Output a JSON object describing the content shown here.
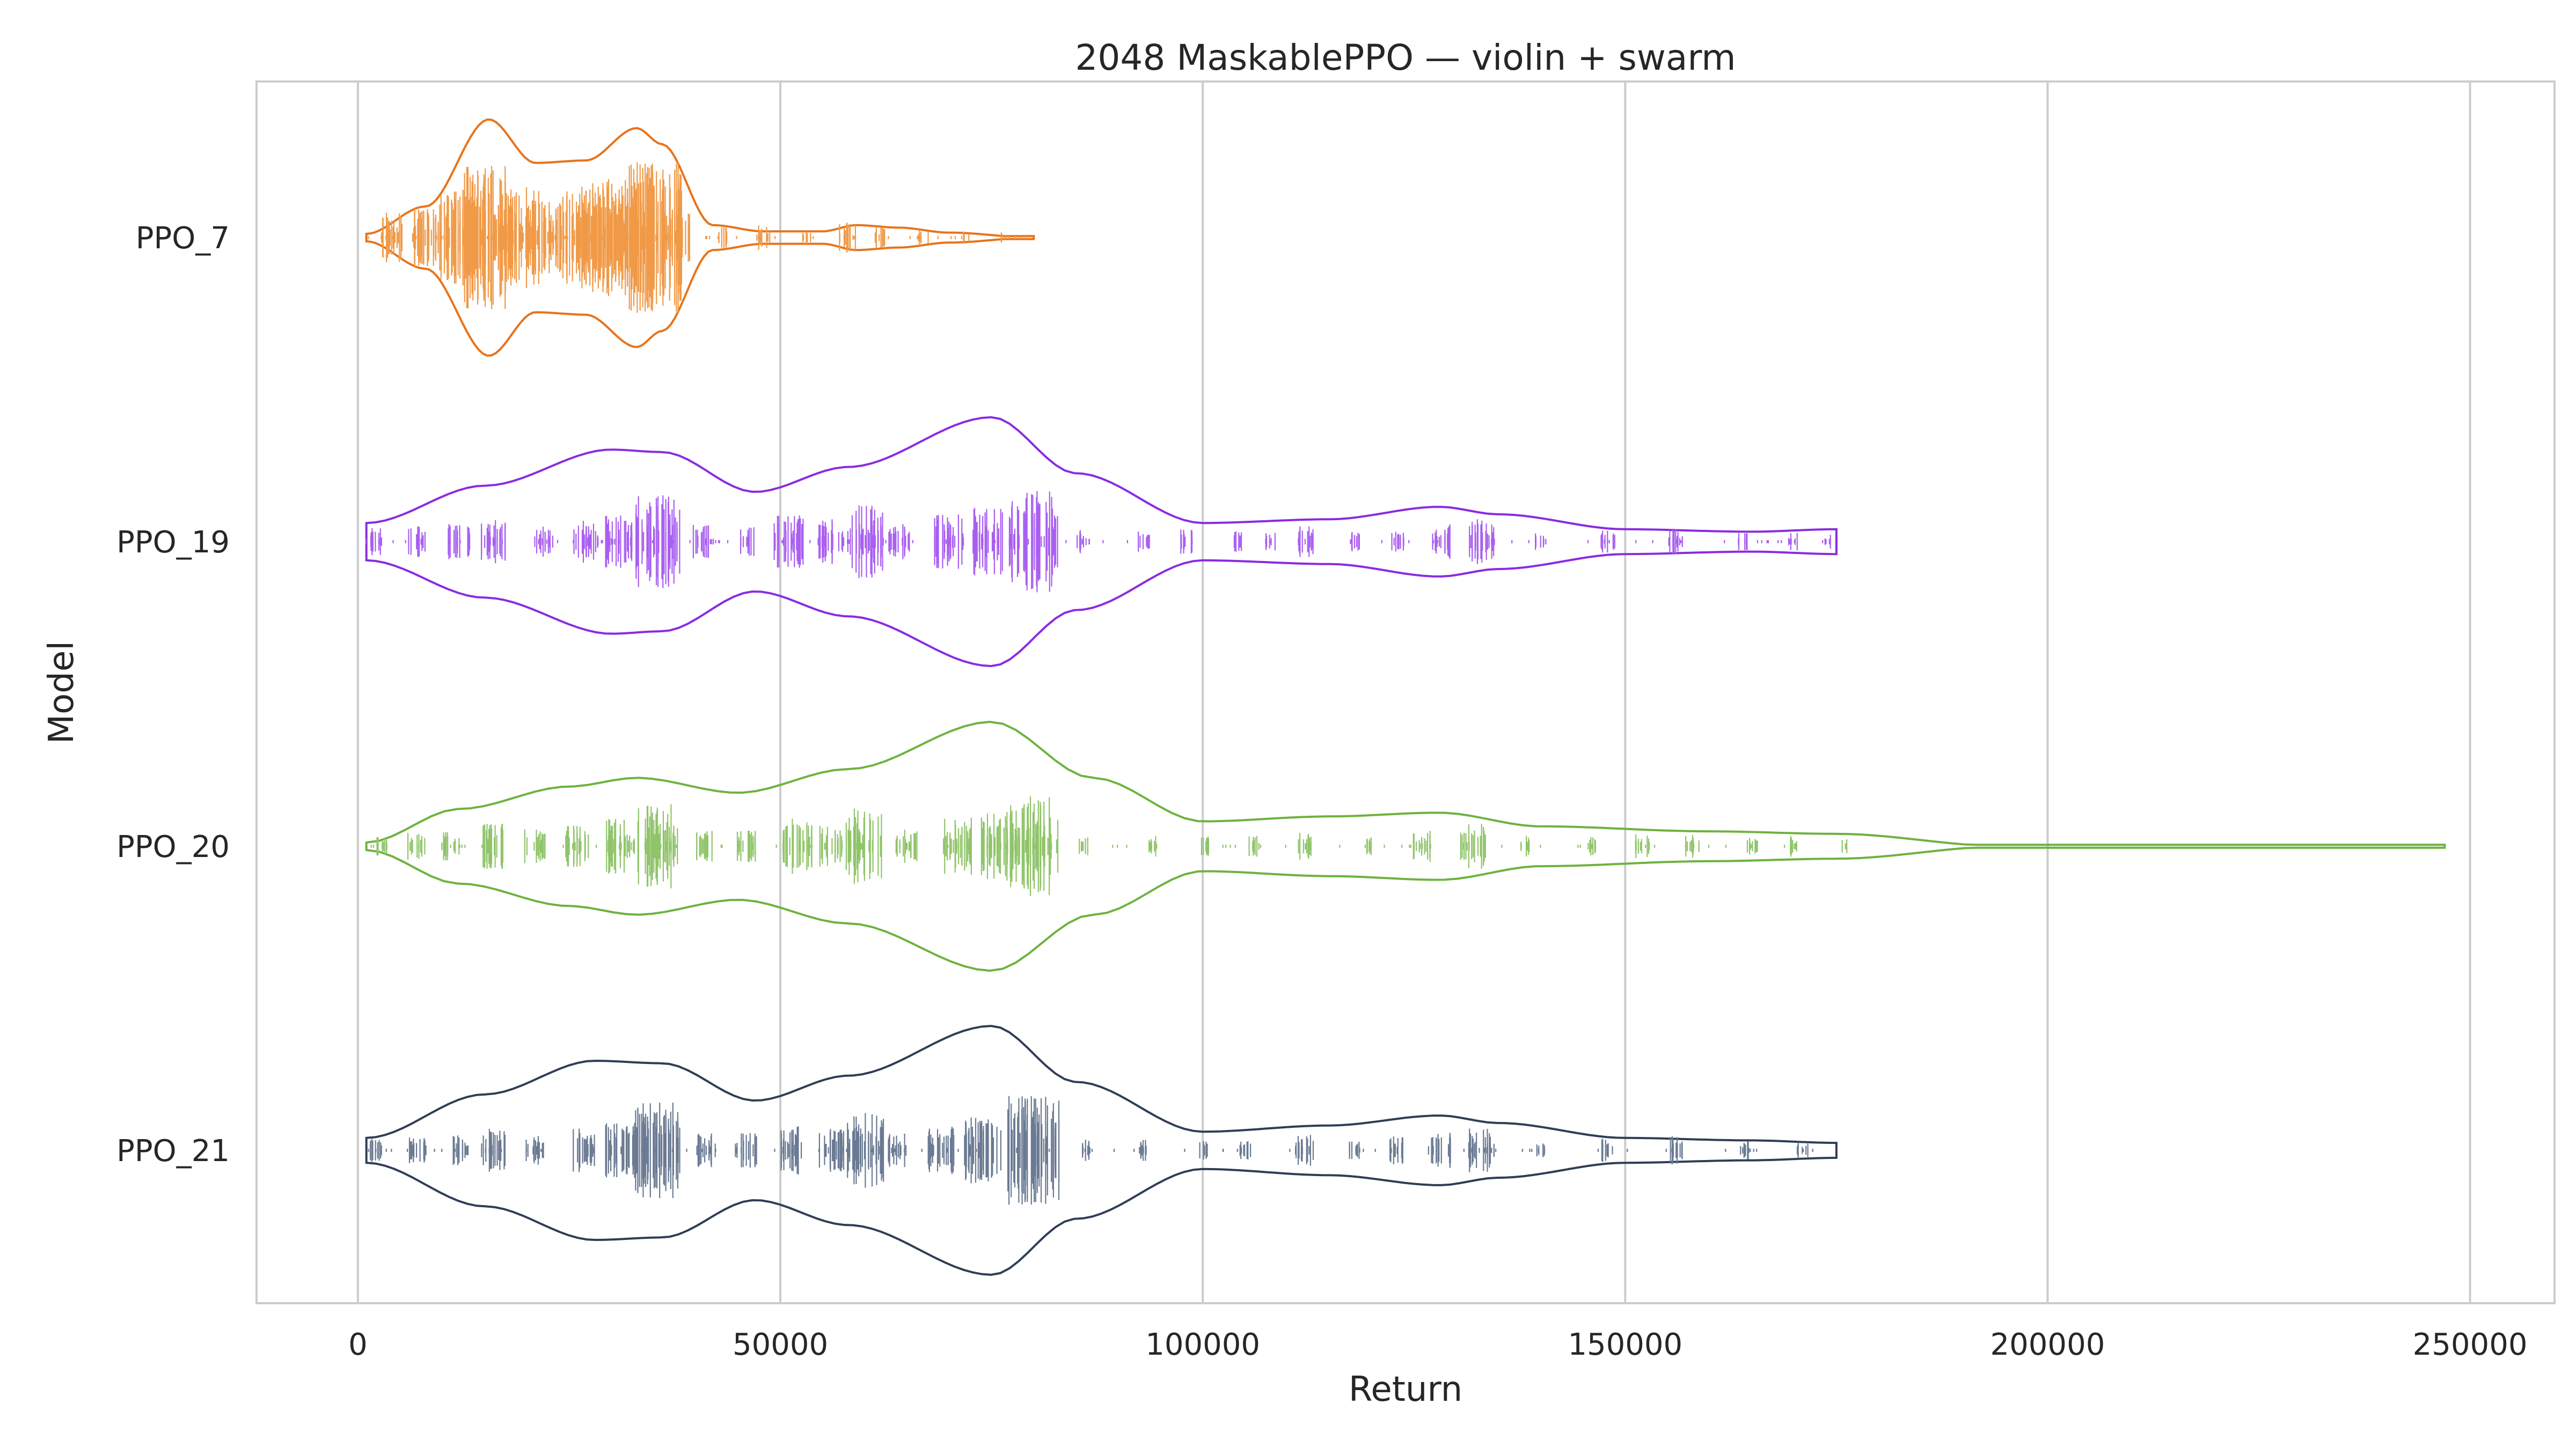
{
  "chart_data": {
    "type": "violin",
    "title": "2048 MaskablePPO — violin + swarm",
    "xlabel": "Return",
    "ylabel": "Model",
    "xlim": [
      -12000,
      260000
    ],
    "xticks": [
      0,
      50000,
      100000,
      150000,
      200000,
      250000
    ],
    "xtick_labels": [
      "0",
      "50000",
      "100000",
      "150000",
      "200000",
      "250000"
    ],
    "grid": "vertical",
    "series": [
      {
        "name": "PPO_7",
        "color": "#e8731a",
        "swarm_color": "#f09a48",
        "min": 1000,
        "max": 80000,
        "density": [
          [
            1000,
            0.03
          ],
          [
            8000,
            0.25
          ],
          [
            15500,
            0.95
          ],
          [
            21000,
            0.6
          ],
          [
            27000,
            0.62
          ],
          [
            33000,
            0.88
          ],
          [
            36000,
            0.75
          ],
          [
            42000,
            0.1
          ],
          [
            48000,
            0.05
          ],
          [
            55000,
            0.05
          ],
          [
            59000,
            0.1
          ],
          [
            64000,
            0.08
          ],
          [
            70000,
            0.04
          ],
          [
            80000,
            0.0
          ]
        ],
        "clusters": [
          [
            4000,
            25,
            6
          ],
          [
            8000,
            30,
            7
          ],
          [
            12000,
            50,
            11
          ],
          [
            15500,
            80,
            14
          ],
          [
            19000,
            55,
            11
          ],
          [
            22000,
            40,
            9
          ],
          [
            26000,
            50,
            10
          ],
          [
            29000,
            60,
            13
          ],
          [
            32000,
            65,
            14
          ],
          [
            35000,
            85,
            16
          ],
          [
            38000,
            25,
            7
          ],
          [
            43000,
            8,
            3
          ],
          [
            48000,
            10,
            4
          ],
          [
            53000,
            6,
            3
          ],
          [
            58000,
            14,
            5
          ],
          [
            62000,
            8,
            4
          ],
          [
            67000,
            5,
            3
          ],
          [
            72000,
            4,
            2
          ],
          [
            76000,
            2,
            2
          ]
        ]
      },
      {
        "name": "PPO_19",
        "color": "#8a2be2",
        "swarm_color": "#a95ff0",
        "min": 1000,
        "max": 175000,
        "density": [
          [
            1000,
            0.15
          ],
          [
            15000,
            0.45
          ],
          [
            30000,
            0.74
          ],
          [
            36000,
            0.72
          ],
          [
            47000,
            0.4
          ],
          [
            58000,
            0.6
          ],
          [
            75000,
            1.0
          ],
          [
            85000,
            0.55
          ],
          [
            100000,
            0.15
          ],
          [
            115000,
            0.18
          ],
          [
            128000,
            0.28
          ],
          [
            135000,
            0.22
          ],
          [
            150000,
            0.1
          ],
          [
            165000,
            0.08
          ],
          [
            175000,
            0.1
          ]
        ],
        "clusters": [
          [
            2000,
            12,
            5
          ],
          [
            7000,
            14,
            5
          ],
          [
            12000,
            16,
            6
          ],
          [
            16000,
            22,
            7
          ],
          [
            22000,
            14,
            5
          ],
          [
            27000,
            20,
            7
          ],
          [
            31000,
            26,
            8
          ],
          [
            35500,
            50,
            12
          ],
          [
            41000,
            16,
            6
          ],
          [
            46000,
            14,
            5
          ],
          [
            51000,
            28,
            8
          ],
          [
            56000,
            22,
            7
          ],
          [
            60000,
            38,
            10
          ],
          [
            64000,
            18,
            6
          ],
          [
            70000,
            28,
            8
          ],
          [
            75000,
            35,
            10
          ],
          [
            80000,
            55,
            13
          ],
          [
            86000,
            10,
            4
          ],
          [
            93000,
            8,
            4
          ],
          [
            98000,
            10,
            4
          ],
          [
            104000,
            8,
            3
          ],
          [
            108000,
            6,
            3
          ],
          [
            112000,
            14,
            5
          ],
          [
            118000,
            8,
            3
          ],
          [
            123000,
            10,
            4
          ],
          [
            128000,
            16,
            6
          ],
          [
            133000,
            22,
            7
          ],
          [
            140000,
            6,
            3
          ],
          [
            148000,
            10,
            4
          ],
          [
            156000,
            12,
            4
          ],
          [
            164000,
            6,
            3
          ],
          [
            170000,
            6,
            3
          ],
          [
            174000,
            4,
            2
          ]
        ]
      },
      {
        "name": "PPO_20",
        "color": "#6db33f",
        "swarm_color": "#90c46a",
        "min": 1000,
        "max": 247000,
        "density": [
          [
            1000,
            0.03
          ],
          [
            12000,
            0.3
          ],
          [
            25000,
            0.48
          ],
          [
            33000,
            0.55
          ],
          [
            45000,
            0.43
          ],
          [
            58000,
            0.62
          ],
          [
            75000,
            1.0
          ],
          [
            87000,
            0.55
          ],
          [
            100000,
            0.2
          ],
          [
            115000,
            0.24
          ],
          [
            128000,
            0.27
          ],
          [
            140000,
            0.16
          ],
          [
            160000,
            0.12
          ],
          [
            175000,
            0.1
          ],
          [
            195000,
            0.0
          ],
          [
            247000,
            0.0
          ]
        ],
        "clusters": [
          [
            3000,
            8,
            4
          ],
          [
            7000,
            12,
            5
          ],
          [
            11000,
            14,
            5
          ],
          [
            16000,
            22,
            7
          ],
          [
            21000,
            16,
            6
          ],
          [
            26000,
            20,
            7
          ],
          [
            31000,
            28,
            8
          ],
          [
            35500,
            45,
            11
          ],
          [
            41000,
            14,
            5
          ],
          [
            46000,
            16,
            6
          ],
          [
            52000,
            28,
            8
          ],
          [
            56000,
            20,
            7
          ],
          [
            60000,
            40,
            10
          ],
          [
            65000,
            18,
            6
          ],
          [
            71000,
            30,
            8
          ],
          [
            76000,
            36,
            10
          ],
          [
            80000,
            55,
            13
          ],
          [
            86000,
            8,
            3
          ],
          [
            94000,
            8,
            3
          ],
          [
            100000,
            10,
            4
          ],
          [
            106000,
            8,
            3
          ],
          [
            112000,
            12,
            4
          ],
          [
            120000,
            8,
            3
          ],
          [
            126000,
            14,
            5
          ],
          [
            132000,
            22,
            7
          ],
          [
            138000,
            8,
            3
          ],
          [
            146000,
            8,
            3
          ],
          [
            152000,
            10,
            4
          ],
          [
            158000,
            12,
            4
          ],
          [
            165000,
            8,
            3
          ],
          [
            170000,
            8,
            3
          ],
          [
            176000,
            4,
            2
          ]
        ]
      },
      {
        "name": "PPO_21",
        "color": "#2f3e55",
        "swarm_color": "#6a7a93",
        "min": 1000,
        "max": 175000,
        "density": [
          [
            1000,
            0.1
          ],
          [
            15000,
            0.45
          ],
          [
            28000,
            0.72
          ],
          [
            36000,
            0.7
          ],
          [
            47000,
            0.4
          ],
          [
            58000,
            0.6
          ],
          [
            75000,
            1.0
          ],
          [
            85000,
            0.55
          ],
          [
            100000,
            0.15
          ],
          [
            115000,
            0.2
          ],
          [
            128000,
            0.28
          ],
          [
            135000,
            0.22
          ],
          [
            150000,
            0.1
          ],
          [
            165000,
            0.08
          ],
          [
            175000,
            0.06
          ]
        ],
        "clusters": [
          [
            2000,
            10,
            4
          ],
          [
            7000,
            12,
            5
          ],
          [
            12000,
            14,
            5
          ],
          [
            16000,
            22,
            7
          ],
          [
            21000,
            14,
            5
          ],
          [
            27000,
            22,
            7
          ],
          [
            31000,
            28,
            8
          ],
          [
            35500,
            52,
            12
          ],
          [
            41000,
            16,
            6
          ],
          [
            46000,
            16,
            6
          ],
          [
            51000,
            24,
            7
          ],
          [
            56000,
            24,
            7
          ],
          [
            60000,
            40,
            10
          ],
          [
            64000,
            16,
            6
          ],
          [
            69000,
            24,
            7
          ],
          [
            74000,
            34,
            10
          ],
          [
            80000,
            60,
            14
          ],
          [
            86000,
            8,
            3
          ],
          [
            93000,
            8,
            3
          ],
          [
            100000,
            8,
            3
          ],
          [
            105000,
            8,
            3
          ],
          [
            112000,
            14,
            5
          ],
          [
            118000,
            8,
            3
          ],
          [
            123000,
            12,
            4
          ],
          [
            128000,
            16,
            6
          ],
          [
            133000,
            22,
            7
          ],
          [
            140000,
            6,
            3
          ],
          [
            148000,
            10,
            4
          ],
          [
            156000,
            12,
            4
          ],
          [
            164000,
            8,
            3
          ],
          [
            171000,
            6,
            3
          ]
        ]
      }
    ]
  }
}
